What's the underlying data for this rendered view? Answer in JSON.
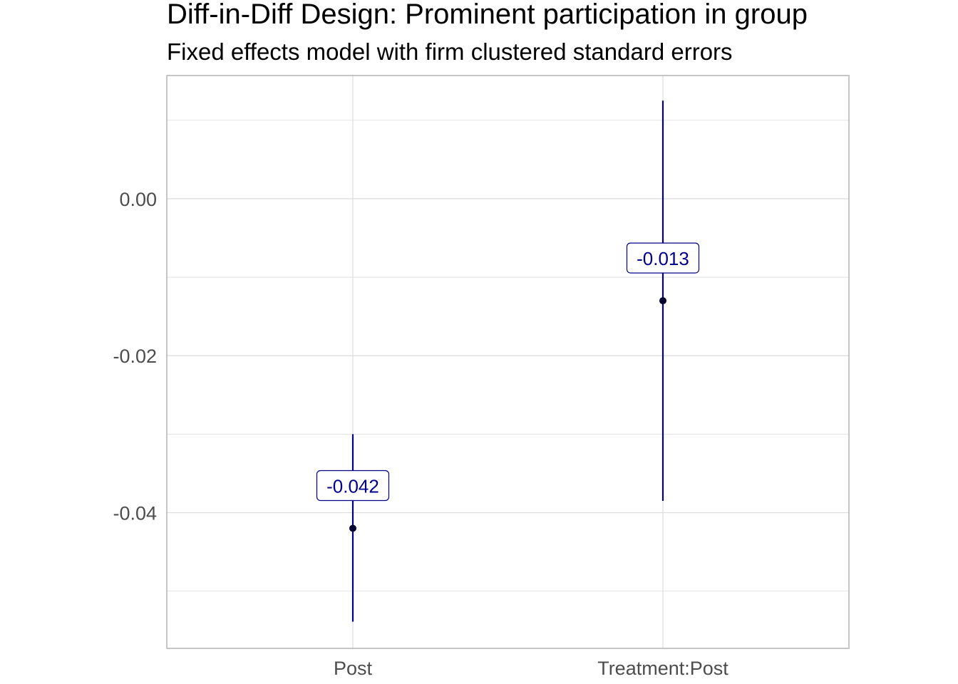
{
  "chart_data": {
    "type": "scatter",
    "title": "Diff-in-Diff Design: Prominent participation in group",
    "subtitle": "Fixed effects model with firm clustered standard errors",
    "xlabel": "",
    "ylabel": "",
    "categories": [
      "Post",
      "Treatment:Post"
    ],
    "series": [
      {
        "estimates": [
          -0.042,
          -0.013
        ],
        "ci_low": [
          -0.0539,
          -0.0385
        ],
        "ci_high": [
          -0.03,
          0.0125
        ],
        "labels": [
          "-0.042",
          "-0.013"
        ]
      }
    ],
    "ylim": [
      -0.0573,
      0.0157
    ],
    "yticks": [
      0.0,
      -0.02,
      -0.04
    ],
    "ytick_labels": [
      "0.00",
      "-0.02",
      "-0.04"
    ],
    "grid": true,
    "legend": "none",
    "colors": {
      "interval": "#00008b",
      "point": "#000033",
      "label_text": "#00008b",
      "label_border": "#00008b",
      "grid": "#dedede",
      "panel_border": "#b3b3b3"
    }
  }
}
